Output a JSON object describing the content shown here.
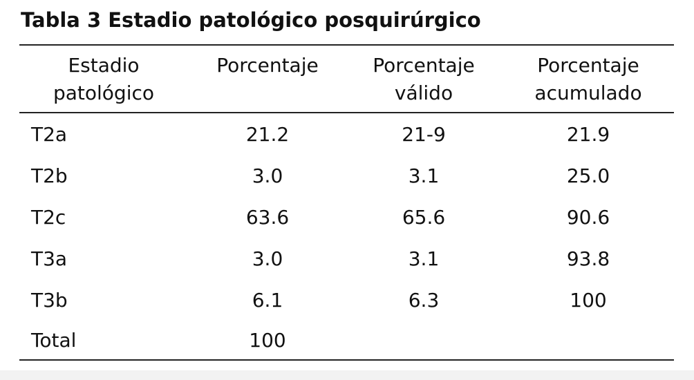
{
  "title": "Tabla 3 Estadio patológico posquirúrgico",
  "table": {
    "header": [
      [
        "Estadio",
        "patológico"
      ],
      [
        "Porcentaje"
      ],
      [
        "Porcentaje",
        "válido"
      ],
      [
        "Porcentaje",
        "acumulado"
      ]
    ],
    "rows": [
      [
        "T2a",
        "21.2",
        "21-9",
        "21.9"
      ],
      [
        "T2b",
        "3.0",
        "3.1",
        "25.0"
      ],
      [
        "T2c",
        "63.6",
        "65.6",
        "90.6"
      ],
      [
        "T3a",
        "3.0",
        "3.1",
        "93.8"
      ],
      [
        "T3b",
        "6.1",
        "6.3",
        "100"
      ],
      [
        "Total",
        "100"
      ]
    ]
  }
}
